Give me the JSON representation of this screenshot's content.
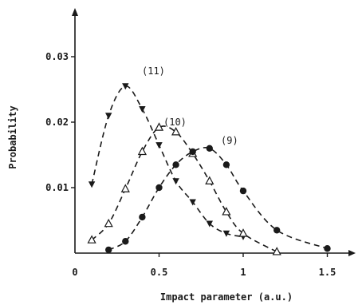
{
  "chart_data": {
    "type": "line",
    "title": "",
    "xlabel": "Impact parameter (a.u.)",
    "ylabel": "Probability",
    "xlim": [
      0,
      1.65
    ],
    "ylim": [
      0,
      0.036
    ],
    "x_ticks": [
      {
        "value": 0,
        "label": "0"
      },
      {
        "value": 0.5,
        "label": "0.5"
      },
      {
        "value": 1,
        "label": "1"
      },
      {
        "value": 1.5,
        "label": "1.5"
      }
    ],
    "y_ticks": [
      {
        "value": 0.01,
        "label": "0.01"
      },
      {
        "value": 0.02,
        "label": "0.02"
      },
      {
        "value": 0.03,
        "label": "0.03"
      }
    ],
    "grid": false,
    "series": [
      {
        "name": "(11)",
        "marker": "filled-triangle-down",
        "x": [
          0.1,
          0.2,
          0.3,
          0.4,
          0.5,
          0.6,
          0.7,
          0.8,
          0.9,
          1.0
        ],
        "y": [
          0.0105,
          0.021,
          0.0255,
          0.022,
          0.0165,
          0.011,
          0.0078,
          0.0045,
          0.003,
          0.0025
        ]
      },
      {
        "name": "(10)",
        "marker": "open-triangle-up",
        "x": [
          0.1,
          0.2,
          0.3,
          0.4,
          0.5,
          0.6,
          0.7,
          0.8,
          0.9,
          1.0,
          1.2
        ],
        "y": [
          0.002,
          0.0045,
          0.0098,
          0.0155,
          0.0192,
          0.0185,
          0.0152,
          0.011,
          0.0063,
          0.003,
          0.0002
        ]
      },
      {
        "name": "(9)",
        "marker": "filled-circle",
        "x": [
          0.2,
          0.3,
          0.4,
          0.5,
          0.6,
          0.7,
          0.8,
          0.9,
          1.0,
          1.2,
          1.5
        ],
        "y": [
          0.0005,
          0.0018,
          0.0055,
          0.01,
          0.0135,
          0.0155,
          0.016,
          0.0135,
          0.0095,
          0.0035,
          0.0007
        ]
      }
    ]
  }
}
